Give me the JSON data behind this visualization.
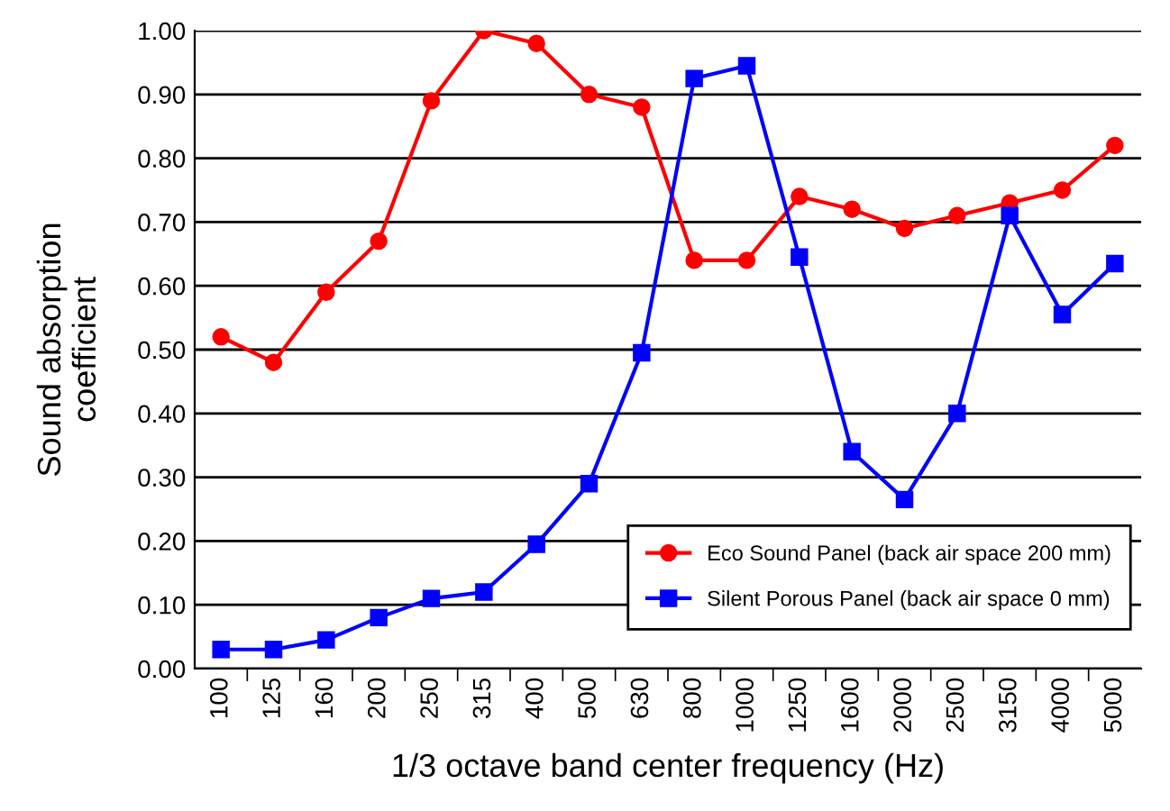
{
  "chart_data": {
    "type": "line",
    "xlabel": "1/3 octave band center frequency (Hz)",
    "ylabel": "Sound absorption\ncoefficient",
    "categories": [
      "100",
      "125",
      "160",
      "200",
      "250",
      "315",
      "400",
      "500",
      "630",
      "800",
      "1000",
      "1250",
      "1600",
      "2000",
      "2500",
      "3150",
      "4000",
      "5000"
    ],
    "series": [
      {
        "name": "Eco Sound Panel (back air space 200 mm)",
        "color": "#ff0000",
        "marker": "circle",
        "values": [
          0.52,
          0.48,
          0.59,
          0.67,
          0.89,
          1.0,
          0.98,
          0.9,
          0.88,
          0.64,
          0.64,
          0.74,
          0.72,
          0.69,
          0.71,
          0.73,
          0.75,
          0.82
        ]
      },
      {
        "name": "Silent Porous Panel (back air space 0 mm)",
        "color": "#0000ff",
        "marker": "square",
        "values": [
          0.03,
          0.03,
          0.045,
          0.08,
          0.11,
          0.12,
          0.195,
          0.29,
          0.495,
          0.925,
          0.945,
          0.645,
          0.34,
          0.265,
          0.4,
          0.71,
          0.555,
          0.635
        ]
      }
    ],
    "ylim": [
      0,
      1
    ],
    "yticks": [
      {
        "value": 0,
        "label": "0.00"
      },
      {
        "value": 0.1,
        "label": "0.10"
      },
      {
        "value": 0.2,
        "label": "0.20"
      },
      {
        "value": 0.3,
        "label": "0.30"
      },
      {
        "value": 0.4,
        "label": "0.40"
      },
      {
        "value": 0.5,
        "label": "0.50"
      },
      {
        "value": 0.6,
        "label": "0.60"
      },
      {
        "value": 0.7,
        "label": "0.70"
      },
      {
        "value": 0.8,
        "label": "0.80"
      },
      {
        "value": 0.9,
        "label": "0.90"
      },
      {
        "value": 1,
        "label": "1.00"
      }
    ],
    "grid": "y",
    "legend": "bottom right",
    "line_style": "solid"
  }
}
